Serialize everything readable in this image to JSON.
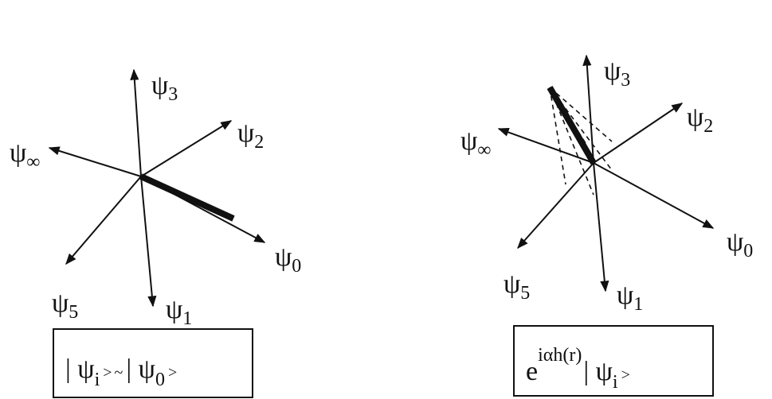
{
  "diagrams": [
    {
      "labels": [
        {
          "base": "ψ",
          "sub": "3"
        },
        {
          "base": "ψ",
          "sub": "2"
        },
        {
          "base": "ψ",
          "sub": "∞"
        },
        {
          "base": "ψ",
          "sub": "0"
        },
        {
          "base": "ψ",
          "sub": "5"
        },
        {
          "base": "ψ",
          "sub": "1"
        }
      ],
      "caption": [
        "| ψ",
        "i",
        ">",
        "~",
        "| ψ",
        "0",
        ">"
      ]
    },
    {
      "labels": [
        {
          "base": "ψ",
          "sub": "3"
        },
        {
          "base": "ψ",
          "sub": "2"
        },
        {
          "base": "ψ",
          "sub": "∞"
        },
        {
          "base": "ψ",
          "sub": "0"
        },
        {
          "base": "ψ",
          "sub": "5"
        },
        {
          "base": "ψ",
          "sub": "1"
        }
      ],
      "caption": [
        "e",
        "iαh(r)",
        "| ψ",
        "i",
        ">"
      ]
    }
  ]
}
